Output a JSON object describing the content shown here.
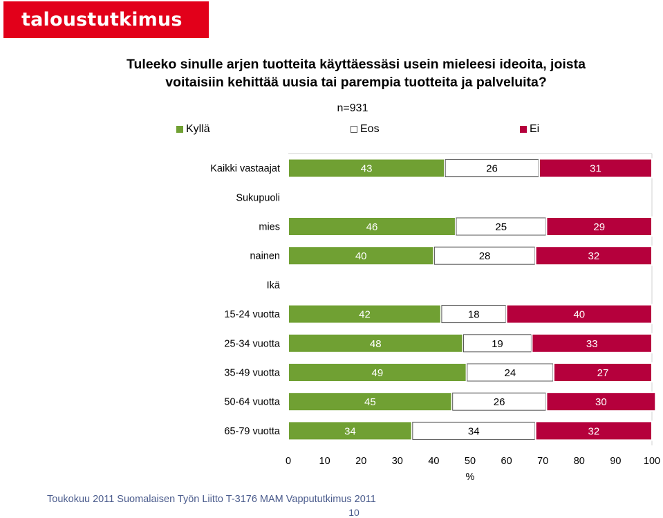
{
  "logo_text": "taloustutkimus oy",
  "colors": {
    "brand": "#e2001a",
    "kylla": "#70a033",
    "eos": "#ffffff",
    "ei": "#b5003c",
    "footer": "#4a5b8c"
  },
  "footer": {
    "text": "Toukokuu 2011  Suomalaisen Työn Liitto  T-3176 MAM  Vappututkimus 2011",
    "page_number": "10"
  },
  "chart_data": {
    "type": "bar",
    "orientation": "horizontal",
    "stacked": true,
    "title_lines": [
      "Tuleeko sinulle arjen tuotteita käyttäessäsi usein mieleesi ideoita, joista",
      "voitaisiin kehittää uusia tai parempia tuotteita ja palveluita?"
    ],
    "subtitle": "n=931",
    "xlabel": "%",
    "xlim": [
      0,
      100
    ],
    "xticks": [
      0,
      10,
      20,
      30,
      40,
      50,
      60,
      70,
      80,
      90,
      100
    ],
    "legend_position": "top",
    "series": [
      {
        "name": "Kyllä",
        "color": "#70a033"
      },
      {
        "name": "Eos",
        "color": "#ffffff"
      },
      {
        "name": "Ei",
        "color": "#b5003c"
      }
    ],
    "rows": [
      {
        "label": "Kaikki vastaajat",
        "values": [
          43,
          26,
          31
        ]
      },
      {
        "label": "Sukupuoli",
        "heading": true
      },
      {
        "label": "mies",
        "values": [
          46,
          25,
          29
        ]
      },
      {
        "label": "nainen",
        "values": [
          40,
          28,
          32
        ]
      },
      {
        "label": "Ikä",
        "heading": true
      },
      {
        "label": "15-24 vuotta",
        "values": [
          42,
          18,
          40
        ]
      },
      {
        "label": "25-34 vuotta",
        "values": [
          48,
          19,
          33
        ]
      },
      {
        "label": "35-49 vuotta",
        "values": [
          49,
          24,
          27
        ]
      },
      {
        "label": "50-64 vuotta",
        "values": [
          45,
          26,
          30
        ]
      },
      {
        "label": "65-79 vuotta",
        "values": [
          34,
          34,
          32
        ]
      }
    ]
  }
}
